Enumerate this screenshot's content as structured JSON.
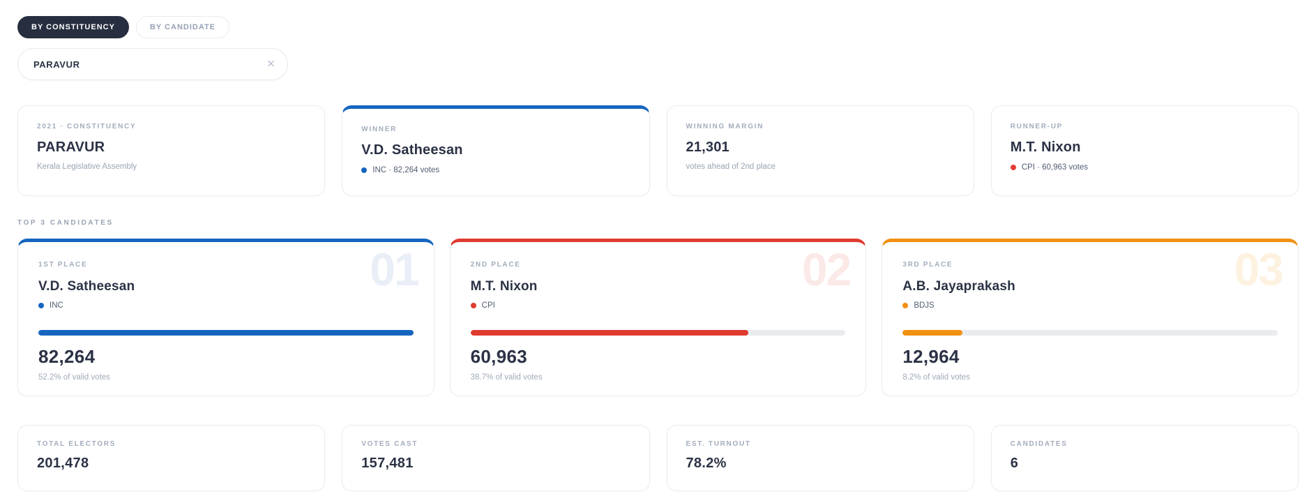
{
  "tabs": [
    {
      "label": "BY CONSTITUENCY",
      "active": true
    },
    {
      "label": "BY CANDIDATE",
      "active": false
    }
  ],
  "search": {
    "value": "PARAVUR",
    "clear_icon": "✕"
  },
  "summary_cards": {
    "constituency": {
      "label": "2021 · CONSTITUENCY",
      "title": "PARAVUR",
      "subtitle": "Kerala Legislative Assembly"
    },
    "winner": {
      "label": "WINNER",
      "title": "V.D. Satheesan",
      "detail": "INC · 82,264 votes",
      "accent": "#1565c0"
    },
    "margin": {
      "label": "WINNING MARGIN",
      "title": "21,301",
      "subtitle": "votes ahead of 2nd place"
    },
    "runner_up": {
      "label": "RUNNER-UP",
      "title": "M.T. Nixon",
      "detail": "CPI · 60,963 votes",
      "accent": "#e23d32"
    }
  },
  "section_label": "TOP 3 CANDIDATES",
  "candidates": [
    {
      "place_label": "1ST PLACE",
      "rank": "01",
      "name": "V.D. Satheesan",
      "party": "INC",
      "votes": "82,264",
      "share": "52.2% of valid votes",
      "bar_width": "100%",
      "color": "#1565c0",
      "watermark_color": "#e9eef7"
    },
    {
      "place_label": "2ND PLACE",
      "rank": "02",
      "name": "M.T. Nixon",
      "party": "CPI",
      "votes": "60,963",
      "share": "38.7% of valid votes",
      "bar_width": "74%",
      "color": "#e03b30",
      "watermark_color": "#fbe9e7"
    },
    {
      "place_label": "3RD PLACE",
      "rank": "03",
      "name": "A.B. Jayaprakash",
      "party": "BDJS",
      "votes": "12,964",
      "share": "8.2% of valid votes",
      "bar_width": "16%",
      "color": "#f29012",
      "watermark_color": "#fdf2e0"
    }
  ],
  "stats": [
    {
      "label": "TOTAL ELECTORS",
      "value": "201,478"
    },
    {
      "label": "VOTES CAST",
      "value": "157,481"
    },
    {
      "label": "EST. TURNOUT",
      "value": "78.2%"
    },
    {
      "label": "CANDIDATES",
      "value": "6"
    }
  ]
}
